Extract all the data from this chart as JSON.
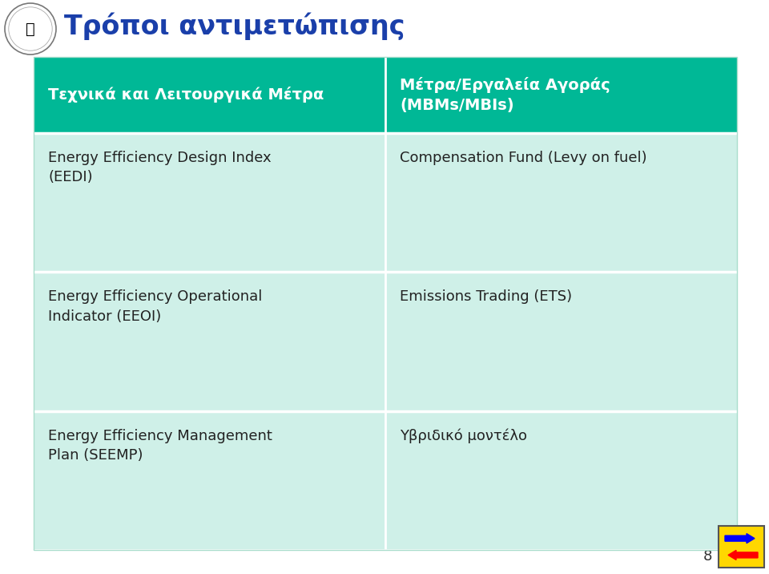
{
  "title": "Τρόποι αντιμετώπισης",
  "title_color": "#1a3faa",
  "background_color": "#ffffff",
  "teal_header_color": "#00b896",
  "cell_light_color": "#cff0e8",
  "header_text_color": "#ffffff",
  "cell_text_color": "#222222",
  "col1_header": "Τεχνικά και Λειτουργικά Μέτρα",
  "col2_header": "Μέτρα/Εργαλεία Αγοράς\n(MBMs/MBIs)",
  "rows": [
    [
      "Energy Efficiency Design Index\n(EEDI)",
      "Compensation Fund (Levy on fuel)"
    ],
    [
      "Energy Efficiency Operational\nIndicator (EEOI)",
      "Emissions Trading (ETS)"
    ],
    [
      "Energy Efficiency Management\nPlan (SEEMP)",
      "Υβριδικό μοντέλο"
    ]
  ],
  "page_number": "8",
  "fig_width": 9.6,
  "fig_height": 7.16,
  "dpi": 100
}
